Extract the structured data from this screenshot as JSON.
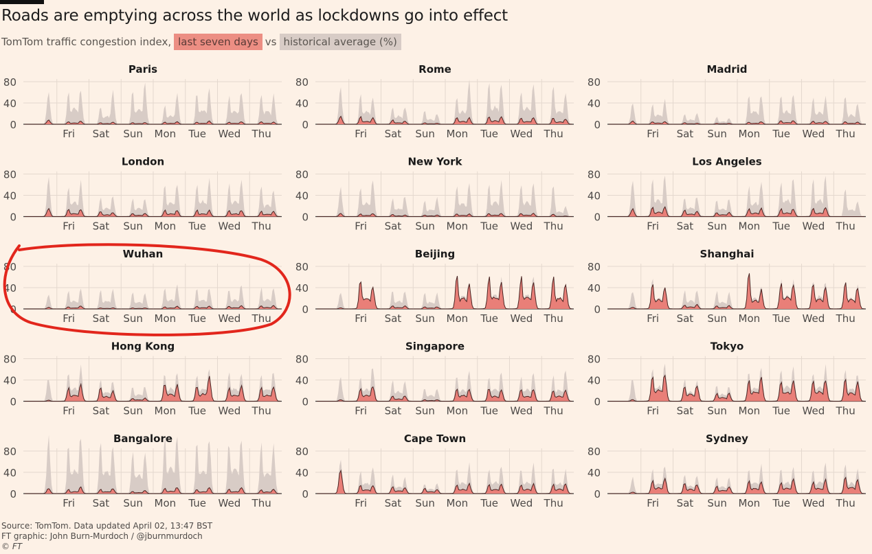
{
  "header": {
    "title": "Roads are emptying across the world as lockdowns go into effect",
    "subtitle_prefix": "TomTom traffic congestion index,",
    "legend_recent": "last seven days",
    "legend_vs": "vs",
    "legend_historical": "historical average (%)"
  },
  "footer": {
    "source": "Source: TomTom. Data updated April 02, 13:47 BST",
    "credit": "FT graphic: John Burn-Murdoch / @jburnmurdoch",
    "copyright": "© FT"
  },
  "colors": {
    "background": "#fdf1e6",
    "historical": "#d8ccc6",
    "recent": "#e97f78",
    "line": "#4a2523",
    "grid": "#e4d8ce",
    "annotation": "#e2261c"
  },
  "chart_data": {
    "type": "area",
    "description": "Small multiples: hourly congestion index, last seven days vs historical average",
    "days": [
      "Fri",
      "Sat",
      "Sun",
      "Mon",
      "Tue",
      "Wed",
      "Thu"
    ],
    "yticks": [
      "0",
      "40",
      "80"
    ],
    "ylim": [
      0,
      100
    ],
    "x_note": "x axis = 8 day slots (partial Thursday + Fri..Thu); day labels under slots 2-8",
    "panels": [
      {
        "city": "Paris",
        "hist": [
          [
            0,
            60
          ],
          [
            65,
            65
          ],
          [
            35,
            65
          ],
          [
            65,
            75
          ],
          [
            35,
            60
          ],
          [
            60,
            65
          ],
          [
            55,
            65
          ],
          [
            60,
            55
          ]
        ],
        "recent": [
          [
            0,
            8
          ],
          [
            5,
            6
          ],
          [
            3,
            4
          ],
          [
            3,
            3
          ],
          [
            4,
            5
          ],
          [
            4,
            6
          ],
          [
            4,
            5
          ],
          [
            5,
            4
          ]
        ]
      },
      {
        "city": "Rome",
        "hist": [
          [
            0,
            65
          ],
          [
            55,
            55
          ],
          [
            35,
            35
          ],
          [
            25,
            20
          ],
          [
            55,
            80
          ],
          [
            75,
            75
          ],
          [
            70,
            75
          ],
          [
            75,
            60
          ]
        ],
        "recent": [
          [
            0,
            14
          ],
          [
            14,
            12
          ],
          [
            8,
            6
          ],
          [
            3,
            2
          ],
          [
            13,
            12
          ],
          [
            14,
            14
          ],
          [
            12,
            12
          ],
          [
            12,
            10
          ]
        ]
      },
      {
        "city": "Madrid",
        "hist": [
          [
            0,
            40
          ],
          [
            40,
            45
          ],
          [
            20,
            20
          ],
          [
            15,
            12
          ],
          [
            55,
            55
          ],
          [
            55,
            60
          ],
          [
            50,
            50
          ],
          [
            55,
            40
          ]
        ],
        "recent": [
          [
            0,
            6
          ],
          [
            5,
            5
          ],
          [
            3,
            2
          ],
          [
            2,
            2
          ],
          [
            4,
            5
          ],
          [
            7,
            7
          ],
          [
            6,
            6
          ],
          [
            5,
            4
          ]
        ]
      },
      {
        "city": "London",
        "hist": [
          [
            0,
            70
          ],
          [
            60,
            65
          ],
          [
            35,
            40
          ],
          [
            35,
            35
          ],
          [
            60,
            65
          ],
          [
            65,
            70
          ],
          [
            65,
            70
          ],
          [
            65,
            50
          ]
        ],
        "recent": [
          [
            0,
            15
          ],
          [
            14,
            13
          ],
          [
            10,
            8
          ],
          [
            6,
            6
          ],
          [
            12,
            12
          ],
          [
            12,
            12
          ],
          [
            12,
            12
          ],
          [
            10,
            10
          ]
        ]
      },
      {
        "city": "New York",
        "hist": [
          [
            0,
            55
          ],
          [
            60,
            70
          ],
          [
            35,
            40
          ],
          [
            30,
            35
          ],
          [
            55,
            60
          ],
          [
            60,
            65
          ],
          [
            60,
            65
          ],
          [
            60,
            20
          ]
        ],
        "recent": [
          [
            0,
            6
          ],
          [
            5,
            6
          ],
          [
            4,
            3
          ],
          [
            3,
            3
          ],
          [
            5,
            5
          ],
          [
            6,
            6
          ],
          [
            6,
            6
          ],
          [
            5,
            1
          ]
        ]
      },
      {
        "city": "Los Angeles",
        "hist": [
          [
            0,
            70
          ],
          [
            70,
            75
          ],
          [
            40,
            40
          ],
          [
            35,
            35
          ],
          [
            60,
            70
          ],
          [
            70,
            75
          ],
          [
            70,
            75
          ],
          [
            50,
            30
          ]
        ],
        "recent": [
          [
            0,
            15
          ],
          [
            18,
            18
          ],
          [
            12,
            10
          ],
          [
            8,
            8
          ],
          [
            15,
            15
          ],
          [
            15,
            15
          ],
          [
            15,
            18
          ],
          [
            0,
            0
          ]
        ]
      },
      {
        "city": "Wuhan",
        "hist": [
          [
            0,
            25
          ],
          [
            35,
            40
          ],
          [
            35,
            35
          ],
          [
            30,
            30
          ],
          [
            40,
            45
          ],
          [
            40,
            40
          ],
          [
            40,
            45
          ],
          [
            40,
            40
          ]
        ],
        "recent": [
          [
            0,
            3
          ],
          [
            4,
            6
          ],
          [
            2,
            2
          ],
          [
            2,
            2
          ],
          [
            4,
            5
          ],
          [
            5,
            5
          ],
          [
            5,
            6
          ],
          [
            6,
            6
          ]
        ]
      },
      {
        "city": "Beijing",
        "hist": [
          [
            0,
            30
          ],
          [
            55,
            45
          ],
          [
            35,
            35
          ],
          [
            30,
            30
          ],
          [
            65,
            55
          ],
          [
            60,
            60
          ],
          [
            60,
            60
          ],
          [
            60,
            45
          ]
        ],
        "recent": [
          [
            0,
            2
          ],
          [
            55,
            45
          ],
          [
            6,
            6
          ],
          [
            4,
            4
          ],
          [
            65,
            45
          ],
          [
            60,
            50
          ],
          [
            60,
            48
          ],
          [
            62,
            45
          ]
        ]
      },
      {
        "city": "Shanghai",
        "hist": [
          [
            0,
            35
          ],
          [
            55,
            45
          ],
          [
            35,
            35
          ],
          [
            35,
            30
          ],
          [
            70,
            45
          ],
          [
            55,
            55
          ],
          [
            55,
            55
          ],
          [
            55,
            45
          ]
        ],
        "recent": [
          [
            0,
            3
          ],
          [
            50,
            40
          ],
          [
            8,
            8
          ],
          [
            6,
            6
          ],
          [
            70,
            35
          ],
          [
            50,
            48
          ],
          [
            50,
            40
          ],
          [
            48,
            40
          ]
        ]
      },
      {
        "city": "Hong Kong",
        "hist": [
          [
            0,
            45
          ],
          [
            55,
            65
          ],
          [
            45,
            40
          ],
          [
            30,
            30
          ],
          [
            55,
            55
          ],
          [
            55,
            60
          ],
          [
            55,
            55
          ],
          [
            55,
            60
          ]
        ],
        "recent": [
          [
            0,
            2
          ],
          [
            25,
            30
          ],
          [
            25,
            20
          ],
          [
            6,
            6
          ],
          [
            35,
            30
          ],
          [
            30,
            45
          ],
          [
            25,
            30
          ],
          [
            25,
            28
          ]
        ]
      },
      {
        "city": "Singapore",
        "hist": [
          [
            0,
            45
          ],
          [
            50,
            70
          ],
          [
            40,
            40
          ],
          [
            25,
            25
          ],
          [
            50,
            55
          ],
          [
            50,
            55
          ],
          [
            50,
            55
          ],
          [
            50,
            60
          ]
        ],
        "recent": [
          [
            0,
            3
          ],
          [
            25,
            30
          ],
          [
            10,
            10
          ],
          [
            3,
            3
          ],
          [
            25,
            25
          ],
          [
            25,
            22
          ],
          [
            25,
            22
          ],
          [
            22,
            22
          ]
        ]
      },
      {
        "city": "Tokyo",
        "hist": [
          [
            0,
            45
          ],
          [
            65,
            70
          ],
          [
            45,
            40
          ],
          [
            30,
            30
          ],
          [
            60,
            65
          ],
          [
            65,
            65
          ],
          [
            60,
            65
          ],
          [
            60,
            55
          ]
        ],
        "recent": [
          [
            0,
            3
          ],
          [
            50,
            55
          ],
          [
            30,
            30
          ],
          [
            15,
            15
          ],
          [
            40,
            45
          ],
          [
            40,
            40
          ],
          [
            40,
            40
          ],
          [
            40,
            35
          ]
        ]
      },
      {
        "city": "Bangalore",
        "hist": [
          [
            0,
            110
          ],
          [
            95,
            110
          ],
          [
            100,
            95
          ],
          [
            80,
            80
          ],
          [
            105,
            110
          ],
          [
            100,
            105
          ],
          [
            100,
            105
          ],
          [
            100,
            95
          ]
        ],
        "recent": [
          [
            0,
            10
          ],
          [
            8,
            12
          ],
          [
            8,
            10
          ],
          [
            4,
            6
          ],
          [
            10,
            12
          ],
          [
            8,
            12
          ],
          [
            8,
            12
          ],
          [
            7,
            8
          ]
        ]
      },
      {
        "city": "Cape Town",
        "hist": [
          [
            0,
            65
          ],
          [
            45,
            55
          ],
          [
            35,
            30
          ],
          [
            20,
            20
          ],
          [
            50,
            55
          ],
          [
            50,
            55
          ],
          [
            50,
            55
          ],
          [
            50,
            45
          ]
        ],
        "recent": [
          [
            0,
            45
          ],
          [
            16,
            16
          ],
          [
            14,
            12
          ],
          [
            10,
            8
          ],
          [
            18,
            18
          ],
          [
            18,
            18
          ],
          [
            18,
            18
          ],
          [
            18,
            18
          ]
        ]
      },
      {
        "city": "Sydney",
        "hist": [
          [
            0,
            30
          ],
          [
            45,
            55
          ],
          [
            40,
            35
          ],
          [
            30,
            30
          ],
          [
            50,
            55
          ],
          [
            50,
            50
          ],
          [
            50,
            55
          ],
          [
            55,
            45
          ]
        ],
        "recent": [
          [
            0,
            3
          ],
          [
            25,
            30
          ],
          [
            20,
            18
          ],
          [
            14,
            14
          ],
          [
            25,
            22
          ],
          [
            22,
            28
          ],
          [
            22,
            25
          ],
          [
            30,
            25
          ]
        ]
      }
    ]
  }
}
